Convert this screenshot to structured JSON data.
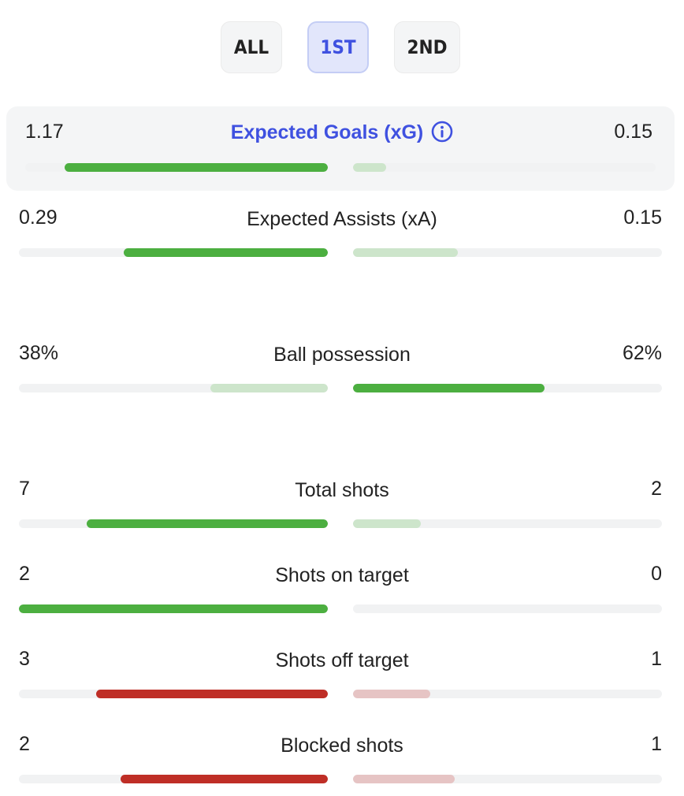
{
  "tabs": [
    {
      "label": "ALL",
      "active": false
    },
    {
      "label": "1ST",
      "active": true
    },
    {
      "label": "2ND",
      "active": false
    }
  ],
  "colors": {
    "accent": "#3f51e0",
    "green_strong": "#4caf40",
    "green_light": "#cde5cb",
    "red_strong": "#bf2e26",
    "red_light": "#e6c4c4",
    "track": "#f1f2f3"
  },
  "stats": [
    {
      "label": "Expected Goals (xG)",
      "left": "1.17",
      "right": "0.15",
      "left_fill": 0.87,
      "right_fill": 0.11,
      "stronger": "left",
      "tone": "green",
      "icon": "info-icon"
    },
    {
      "label": "Expected Assists (xA)",
      "left": "0.29",
      "right": "0.15",
      "left_fill": 0.66,
      "right_fill": 0.34,
      "stronger": "left",
      "tone": "green"
    },
    {
      "label": "Ball possession",
      "left": "38%",
      "right": "62%",
      "left_fill": 0.38,
      "right_fill": 0.62,
      "stronger": "right",
      "tone": "green"
    },
    {
      "label": "Total shots",
      "left": "7",
      "right": "2",
      "left_fill": 0.78,
      "right_fill": 0.22,
      "stronger": "left",
      "tone": "green"
    },
    {
      "label": "Shots on target",
      "left": "2",
      "right": "0",
      "left_fill": 1.0,
      "right_fill": 0.0,
      "stronger": "left",
      "tone": "green"
    },
    {
      "label": "Shots off target",
      "left": "3",
      "right": "1",
      "left_fill": 0.75,
      "right_fill": 0.25,
      "stronger": "left",
      "tone": "red"
    },
    {
      "label": "Blocked shots",
      "left": "2",
      "right": "1",
      "left_fill": 0.67,
      "right_fill": 0.33,
      "stronger": "left",
      "tone": "red"
    }
  ]
}
